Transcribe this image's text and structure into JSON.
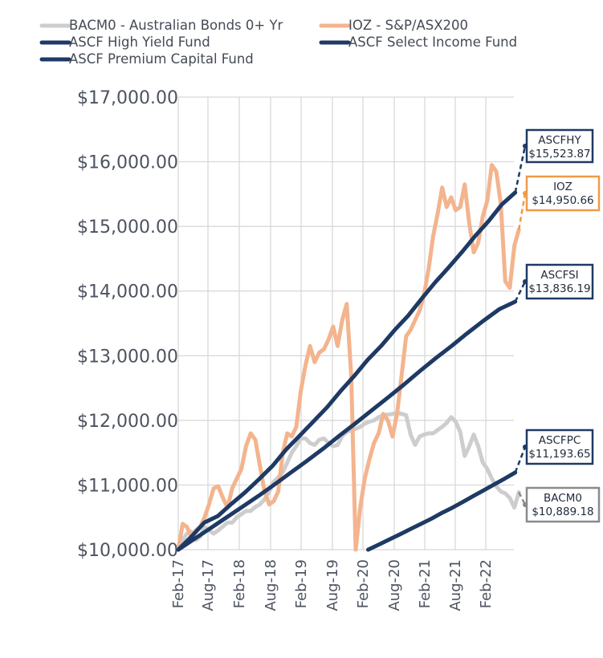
{
  "chart_data": {
    "type": "line",
    "legend_position": "top",
    "grid": true,
    "ylim": [
      10000,
      17000
    ],
    "yticks": [
      "$10,000.00",
      "$11,000.00",
      "$12,000.00",
      "$13,000.00",
      "$14,000.00",
      "$15,000.00",
      "$16,000.00",
      "$17,000.00"
    ],
    "xticks": [
      "Feb-17",
      "Aug-17",
      "Feb-18",
      "Aug-18",
      "Feb-19",
      "Aug-19",
      "Feb-20",
      "Aug-20",
      "Feb-21",
      "Aug-21",
      "Feb-22"
    ],
    "series": [
      {
        "name": "BACM0 - Australian Bonds 0+ Yr",
        "color": "#cdcdcd",
        "values": [
          10000,
          10150,
          10250,
          10280,
          10150,
          10200,
          10350,
          10300,
          10250,
          10300,
          10360,
          10420,
          10420,
          10500,
          10550,
          10600,
          10600,
          10660,
          10700,
          10780,
          10900,
          11050,
          11120,
          11200,
          11350,
          11500,
          11600,
          11720,
          11720,
          11650,
          11620,
          11700,
          11720,
          11650,
          11600,
          11620,
          11760,
          11820,
          11850,
          11870,
          11900,
          11950,
          11980,
          12000,
          12050,
          12080,
          12090,
          12100,
          12120,
          12100,
          12080,
          11780,
          11620,
          11750,
          11780,
          11800,
          11800,
          11850,
          11900,
          11960,
          12050,
          11980,
          11820,
          11450,
          11600,
          11780,
          11600,
          11350,
          11250,
          11100,
          10980,
          10900,
          10870,
          10800,
          10650,
          10889.18
        ]
      },
      {
        "name": "IOZ - S&P/ASX200",
        "color": "#f3b48e",
        "values": [
          10000,
          10400,
          10350,
          10200,
          10300,
          10350,
          10500,
          10700,
          10950,
          10980,
          10800,
          10650,
          10950,
          11100,
          11250,
          11600,
          11800,
          11700,
          11300,
          10900,
          10700,
          10750,
          10900,
          11500,
          11800,
          11750,
          11900,
          12450,
          12850,
          13150,
          12900,
          13050,
          13100,
          13250,
          13450,
          13150,
          13550,
          13800,
          12700,
          10000,
          10650,
          11100,
          11400,
          11650,
          11800,
          12100,
          12000,
          11750,
          12100,
          12700,
          13300,
          13400,
          13550,
          13700,
          13950,
          14350,
          14850,
          15200,
          15600,
          15300,
          15450,
          15250,
          15300,
          15650,
          15050,
          14600,
          14750,
          15150,
          15400,
          15950,
          15850,
          15350,
          14150,
          14050,
          14700,
          14950.66
        ]
      },
      {
        "name": "ASCF High Yield Fund",
        "color": "#1e3a64",
        "values": [
          10000,
          10200,
          10420,
          10520,
          10710,
          10890,
          11090,
          11300,
          11550,
          11760,
          11980,
          12200,
          12450,
          12680,
          12930,
          13150,
          13400,
          13620,
          13880,
          14130,
          14360,
          14600,
          14850,
          15080,
          15340,
          15523.87
        ]
      },
      {
        "name": "ASCF Select Income Fund",
        "color": "#1e3a64",
        "values": [
          10000,
          10160,
          10320,
          10490,
          10660,
          10830,
          11010,
          11190,
          11370,
          11560,
          11760,
          11950,
          12150,
          12350,
          12550,
          12760,
          12960,
          13150,
          13350,
          13540,
          13720,
          13836.19
        ]
      },
      {
        "name": "ASCF Premium Capital Fund",
        "color": "#1e3a64",
        "values": [
          10000,
          10080,
          10160,
          10240,
          10320,
          10400,
          10480,
          10570,
          10650,
          10740,
          10830,
          10920,
          11010,
          11100,
          11193.65
        ]
      }
    ],
    "callouts": [
      {
        "label": "ASCFHY",
        "value": "$15,523.87",
        "border": "#1e3a64"
      },
      {
        "label": "IOZ",
        "value": "$14,950.66",
        "border": "#ef9a48"
      },
      {
        "label": "ASCFSI",
        "value": "$13,836.19",
        "border": "#1e3a64"
      },
      {
        "label": "ASCFPC",
        "value": "$11,193.65",
        "border": "#1e3a64"
      },
      {
        "label": "BACM0",
        "value": "$10,889.18",
        "border": "#8a8a8a"
      }
    ]
  }
}
